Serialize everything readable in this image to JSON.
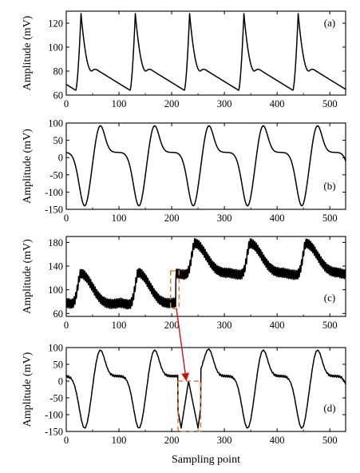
{
  "figure": {
    "xlabel": "Sampling point",
    "colors": {
      "signal": "#000000",
      "highlight_box": "#e07a2e",
      "arrow": "#d01010"
    }
  },
  "chart_data": [
    {
      "type": "line",
      "panel_label": "(a)",
      "ylabel": "Amplitude (mV)",
      "xlim": [
        0,
        530
      ],
      "ylim": [
        60,
        130
      ],
      "xticks": [
        0,
        100,
        200,
        300,
        400,
        500
      ],
      "yticks": [
        60,
        80,
        100,
        120
      ],
      "beat_period": 103,
      "peak_positions": [
        28,
        131,
        234,
        337,
        440
      ],
      "peak_value": 128,
      "plateau_value": 80,
      "trough_value": 64,
      "x": [
        0,
        5,
        10,
        15,
        20,
        25,
        28,
        33,
        40,
        48,
        55,
        62,
        70,
        80,
        90,
        100,
        110,
        120,
        131,
        136,
        143,
        151,
        158,
        165,
        173,
        183,
        193,
        203,
        213,
        223,
        234,
        239,
        246,
        254,
        261,
        268,
        276,
        286,
        296,
        306,
        316,
        326,
        337,
        342,
        349,
        357,
        364,
        371,
        379,
        389,
        399,
        409,
        419,
        429,
        440,
        445,
        452,
        460,
        467,
        474,
        482,
        492,
        502,
        512,
        522,
        530
      ],
      "y": [
        66,
        65,
        70,
        85,
        105,
        122,
        128,
        120,
        100,
        86,
        81,
        80,
        77,
        73,
        69,
        66,
        65,
        70,
        128,
        120,
        100,
        86,
        81,
        80,
        77,
        73,
        69,
        66,
        65,
        70,
        128,
        120,
        100,
        86,
        81,
        80,
        77,
        73,
        69,
        66,
        65,
        70,
        128,
        120,
        100,
        86,
        81,
        80,
        77,
        73,
        69,
        66,
        65,
        70,
        128,
        120,
        100,
        86,
        81,
        80,
        77,
        73,
        69,
        66,
        65,
        65
      ]
    },
    {
      "type": "line",
      "panel_label": "(b)",
      "ylabel": "Amplitude (mV)",
      "xlim": [
        0,
        530
      ],
      "ylim": [
        -150,
        100
      ],
      "xticks": [
        0,
        100,
        200,
        300,
        400,
        500
      ],
      "yticks": [
        -150,
        -100,
        -50,
        0,
        50,
        100
      ],
      "trough_positions": [
        35,
        138,
        241,
        344,
        447
      ],
      "peak_positions": [
        64,
        167,
        270,
        373,
        476
      ],
      "peak_value": 95,
      "trough_value": -140,
      "plateau_value": 15
    },
    {
      "type": "line",
      "panel_label": "(c)",
      "ylabel": "Amplitude (mV)",
      "xlim": [
        0,
        530
      ],
      "ylim": [
        55,
        190
      ],
      "xticks": [
        0,
        100,
        200,
        300,
        400,
        500
      ],
      "yticks": [
        60,
        100,
        140,
        180
      ],
      "baseline_shift_at": 208,
      "peak_values_before_shift": [
        133,
        135
      ],
      "peak_values_after_shift": [
        183,
        183,
        183
      ],
      "oscillation_amplitude": 8,
      "highlight_range": [
        198,
        214
      ],
      "highlight_ylim": [
        68,
        132
      ]
    },
    {
      "type": "line",
      "panel_label": "(d)",
      "ylabel": "Amplitude (mV)",
      "xlim": [
        0,
        530
      ],
      "ylim": [
        -150,
        100
      ],
      "xticks": [
        0,
        100,
        200,
        300,
        400,
        500
      ],
      "yticks": [
        -150,
        -100,
        -50,
        0,
        50,
        100
      ],
      "trough_positions": [
        35,
        138,
        350,
        453
      ],
      "peak_positions": [
        64,
        167,
        270,
        373,
        476
      ],
      "artifact_range": [
        212,
        255
      ],
      "artifact_troughs": [
        218,
        250
      ],
      "artifact_peak": 232,
      "highlight_range": [
        212,
        255
      ],
      "highlight_ylim": [
        -150,
        0
      ]
    }
  ]
}
